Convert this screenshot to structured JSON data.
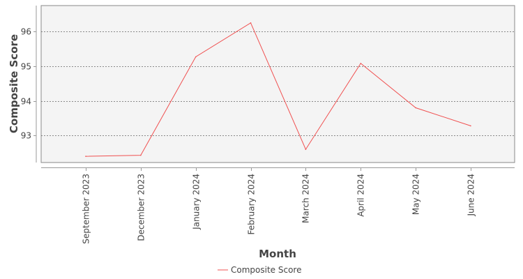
{
  "chart_data": {
    "type": "line",
    "categories": [
      "September 2023",
      "December 2023",
      "January 2024",
      "February 2024",
      "March 2024",
      "April 2024",
      "May 2024",
      "June 2024"
    ],
    "series": [
      {
        "name": "Composite Score",
        "values": [
          92.4,
          92.43,
          95.27,
          96.25,
          92.6,
          95.08,
          93.8,
          93.28
        ],
        "color": "#f05050"
      }
    ],
    "xlabel": "Month",
    "ylabel": "Composite Score",
    "yticks": [
      93,
      94,
      95,
      96
    ],
    "ylim": [
      92.22,
      96.75
    ],
    "grid": true,
    "legend": "bottom-center",
    "plot_background": "#f4f4f4"
  }
}
